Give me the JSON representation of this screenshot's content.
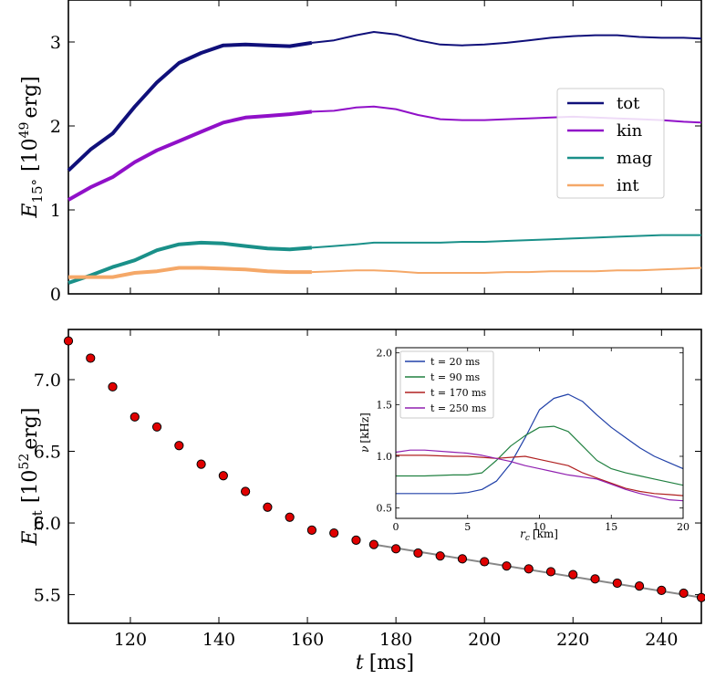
{
  "chart_data": [
    {
      "type": "line",
      "panel": "top",
      "ylabel": "E",
      "ylabel_sub": "15°",
      "ylabel_unit": "[10",
      "ylabel_exp": "49",
      "ylabel_unit_end": "erg]",
      "xlim": [
        106,
        249
      ],
      "ylim": [
        0,
        3.5
      ],
      "yticks": [
        0,
        1,
        2,
        3
      ],
      "yticklabels": [
        "0",
        "1",
        "2",
        "3"
      ],
      "legend_position": "right",
      "series": [
        {
          "name": "tot",
          "color": "#10107a",
          "x": [
            106,
            111,
            116,
            121,
            126,
            131,
            136,
            141,
            146,
            151,
            156,
            161,
            166,
            171,
            175,
            180,
            185,
            190,
            195,
            200,
            205,
            210,
            215,
            220,
            225,
            230,
            235,
            240,
            245,
            249
          ],
          "y": [
            1.47,
            1.72,
            1.91,
            2.23,
            2.52,
            2.75,
            2.87,
            2.96,
            2.97,
            2.96,
            2.95,
            2.99,
            3.02,
            3.08,
            3.12,
            3.09,
            3.02,
            2.97,
            2.96,
            2.97,
            2.99,
            3.02,
            3.05,
            3.07,
            3.08,
            3.08,
            3.06,
            3.05,
            3.05,
            3.04
          ]
        },
        {
          "name": "kin",
          "color": "#9010c8",
          "x": [
            106,
            111,
            116,
            121,
            126,
            131,
            136,
            141,
            146,
            151,
            156,
            161,
            166,
            171,
            175,
            180,
            185,
            190,
            195,
            200,
            205,
            210,
            215,
            220,
            225,
            230,
            235,
            240,
            245,
            249
          ],
          "y": [
            1.12,
            1.27,
            1.39,
            1.57,
            1.71,
            1.82,
            1.93,
            2.04,
            2.1,
            2.12,
            2.14,
            2.17,
            2.18,
            2.22,
            2.23,
            2.2,
            2.13,
            2.08,
            2.07,
            2.07,
            2.08,
            2.09,
            2.1,
            2.11,
            2.1,
            2.09,
            2.08,
            2.07,
            2.05,
            2.04
          ]
        },
        {
          "name": "mag",
          "color": "#1a9089",
          "x": [
            106,
            111,
            116,
            121,
            126,
            131,
            136,
            141,
            146,
            151,
            156,
            161,
            166,
            171,
            175,
            180,
            185,
            190,
            195,
            200,
            205,
            210,
            215,
            220,
            225,
            230,
            235,
            240,
            245,
            249
          ],
          "y": [
            0.13,
            0.22,
            0.32,
            0.4,
            0.52,
            0.59,
            0.61,
            0.6,
            0.57,
            0.54,
            0.53,
            0.55,
            0.57,
            0.59,
            0.61,
            0.61,
            0.61,
            0.61,
            0.62,
            0.62,
            0.63,
            0.64,
            0.65,
            0.66,
            0.67,
            0.68,
            0.69,
            0.7,
            0.7,
            0.7
          ]
        },
        {
          "name": "int",
          "color": "#f5a868",
          "x": [
            106,
            111,
            116,
            121,
            126,
            131,
            136,
            141,
            146,
            151,
            156,
            161,
            166,
            171,
            175,
            180,
            185,
            190,
            195,
            200,
            205,
            210,
            215,
            220,
            225,
            230,
            235,
            240,
            245,
            249
          ],
          "y": [
            0.2,
            0.2,
            0.2,
            0.25,
            0.27,
            0.31,
            0.31,
            0.3,
            0.29,
            0.27,
            0.26,
            0.26,
            0.27,
            0.28,
            0.28,
            0.27,
            0.25,
            0.25,
            0.25,
            0.25,
            0.26,
            0.26,
            0.27,
            0.27,
            0.27,
            0.28,
            0.28,
            0.29,
            0.3,
            0.31
          ]
        }
      ]
    },
    {
      "type": "scatter",
      "panel": "bottom",
      "xlabel": "t",
      "xlabel_unit": "[ms]",
      "ylabel": "E",
      "ylabel_sub": "rot",
      "ylabel_unit": "[10",
      "ylabel_exp": "52",
      "ylabel_unit_end": "erg]",
      "xlim": [
        106,
        249
      ],
      "ylim": [
        5.3,
        7.35
      ],
      "xticks": [
        120,
        140,
        160,
        180,
        200,
        220,
        240
      ],
      "xticklabels": [
        "120",
        "140",
        "160",
        "180",
        "200",
        "220",
        "240"
      ],
      "yticks": [
        5.5,
        6.0,
        6.5,
        7.0
      ],
      "yticklabels": [
        "5.5",
        "6.0",
        "6.5",
        "7.0"
      ],
      "points_color": "#e00000",
      "x": [
        106,
        111,
        116,
        121,
        126,
        131,
        136,
        141,
        146,
        151,
        156,
        161,
        166,
        171,
        175,
        180,
        185,
        190,
        195,
        200,
        205,
        210,
        215,
        220,
        225,
        230,
        235,
        240,
        245,
        249
      ],
      "y": [
        7.27,
        7.15,
        6.95,
        6.74,
        6.67,
        6.54,
        6.41,
        6.33,
        6.22,
        6.11,
        6.04,
        5.95,
        5.93,
        5.88,
        5.85,
        5.82,
        5.79,
        5.77,
        5.75,
        5.73,
        5.7,
        5.68,
        5.66,
        5.64,
        5.61,
        5.58,
        5.56,
        5.53,
        5.51,
        5.48
      ],
      "fit_line": {
        "color": "#888888",
        "x": [
          175,
          249
        ],
        "y": [
          5.85,
          5.48
        ]
      }
    },
    {
      "type": "line",
      "panel": "inset",
      "xlabel": "r",
      "xlabel_sub": "c",
      "xlabel_unit": "[km]",
      "ylabel": "ν",
      "ylabel_unit": "[kHz]",
      "xlim": [
        0,
        20
      ],
      "ylim": [
        0.4,
        2.05
      ],
      "xticks": [
        0,
        5,
        10,
        15,
        20
      ],
      "xticklabels": [
        "0",
        "5",
        "10",
        "15",
        "20"
      ],
      "yticks": [
        0.5,
        1.0,
        1.5,
        2.0
      ],
      "yticklabels": [
        "0.5",
        "1.0",
        "1.5",
        "2.0"
      ],
      "legend_position": "top-left",
      "series": [
        {
          "name": "t = 20 ms",
          "color": "#2040a8",
          "x": [
            0,
            2,
            4,
            5,
            6,
            7,
            8,
            9,
            10,
            11,
            12,
            13,
            14,
            15,
            16,
            17,
            18,
            19,
            20
          ],
          "y": [
            0.64,
            0.64,
            0.64,
            0.65,
            0.68,
            0.76,
            0.93,
            1.18,
            1.45,
            1.56,
            1.6,
            1.53,
            1.4,
            1.28,
            1.18,
            1.08,
            1.0,
            0.94,
            0.88
          ]
        },
        {
          "name": "t = 90 ms",
          "color": "#208040",
          "x": [
            0,
            2,
            4,
            5,
            6,
            7,
            8,
            9,
            10,
            11,
            12,
            13,
            14,
            15,
            16,
            17,
            18,
            19,
            20
          ],
          "y": [
            0.81,
            0.81,
            0.82,
            0.82,
            0.84,
            0.96,
            1.1,
            1.2,
            1.28,
            1.29,
            1.24,
            1.1,
            0.96,
            0.88,
            0.84,
            0.81,
            0.78,
            0.75,
            0.72
          ]
        },
        {
          "name": "t = 170 ms",
          "color": "#b02020",
          "x": [
            0,
            2,
            4,
            5,
            6,
            7,
            8,
            9,
            10,
            11,
            12,
            13,
            14,
            15,
            16,
            17,
            18,
            19,
            20
          ],
          "y": [
            1.01,
            1.01,
            1.0,
            1.0,
            0.99,
            0.98,
            0.99,
            1.0,
            0.97,
            0.94,
            0.91,
            0.84,
            0.79,
            0.74,
            0.69,
            0.66,
            0.64,
            0.63,
            0.62
          ]
        },
        {
          "name": "t = 250 ms",
          "color": "#9020b0",
          "x": [
            0,
            1,
            2,
            4,
            5,
            6,
            7,
            8,
            9,
            10,
            11,
            12,
            13,
            14,
            15,
            16,
            17,
            18,
            19,
            20
          ],
          "y": [
            1.04,
            1.06,
            1.06,
            1.04,
            1.03,
            1.01,
            0.98,
            0.95,
            0.91,
            0.88,
            0.85,
            0.82,
            0.8,
            0.78,
            0.73,
            0.68,
            0.64,
            0.61,
            0.58,
            0.57
          ]
        }
      ]
    }
  ]
}
